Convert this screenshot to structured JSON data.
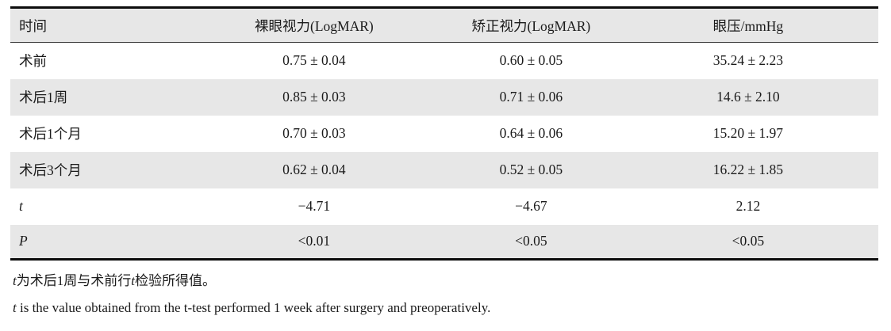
{
  "table": {
    "columns": [
      "时间",
      "裸眼视力(LogMAR)",
      "矫正视力(LogMAR)",
      "眼压/mmHg"
    ],
    "rows": [
      {
        "label": "术前",
        "values": [
          "0.75 ± 0.04",
          "0.60 ± 0.05",
          "35.24 ± 2.23"
        ]
      },
      {
        "label": "术后1周",
        "values": [
          "0.85 ± 0.03",
          "0.71 ± 0.06",
          "14.6 ± 2.10"
        ]
      },
      {
        "label": "术后1个月",
        "values": [
          "0.70 ± 0.03",
          "0.64 ± 0.06",
          "15.20 ± 1.97"
        ]
      },
      {
        "label": "术后3个月",
        "values": [
          "0.62 ± 0.04",
          "0.52 ± 0.05",
          "16.22 ± 1.85"
        ]
      },
      {
        "label": "t",
        "values": [
          "−4.71",
          "−4.67",
          "2.12"
        ]
      },
      {
        "label": "P",
        "values": [
          "<0.01",
          "<0.05",
          "<0.05"
        ]
      }
    ]
  },
  "notes": {
    "cn": [
      "t",
      "为术后1周与术前行",
      "t",
      "检验所得值。"
    ],
    "en": [
      "t",
      " is the value obtained from the t-test performed 1 week after surgery and preoperatively."
    ]
  },
  "colors": {
    "row_shade": "#e7e7e7",
    "border": "#0d0d0d",
    "text": "#1a1a1a"
  }
}
